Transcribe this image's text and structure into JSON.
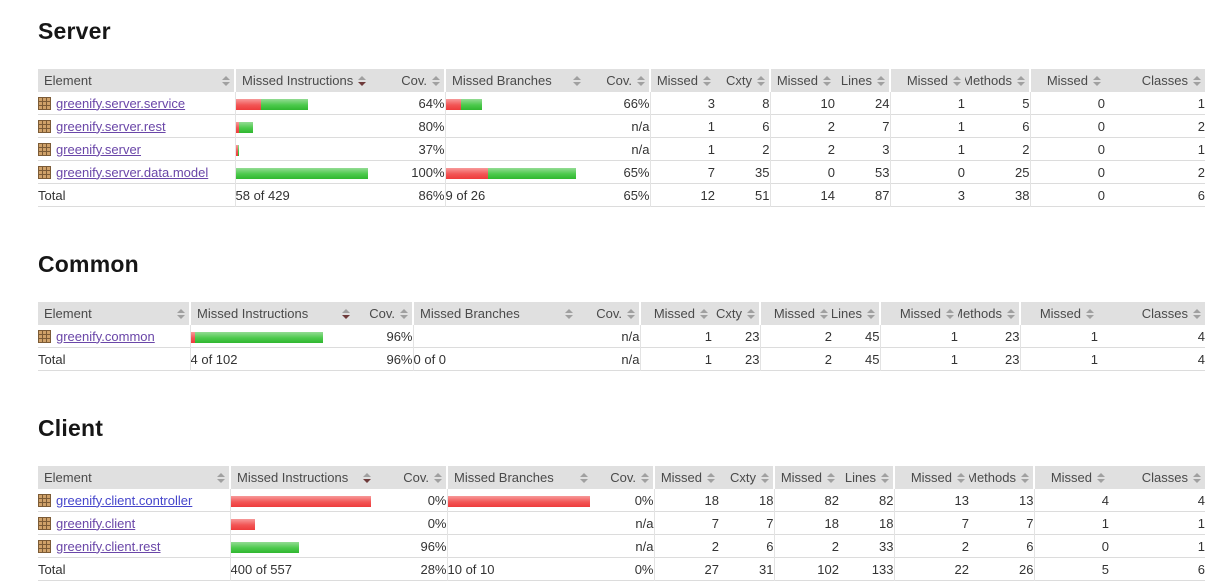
{
  "colors": {
    "header_bg": "#e0e0e0",
    "border": "#dcdcdc",
    "sort_idle": "#a0a0a0",
    "sort_active": "#6e3a3a",
    "bar_red_top": "#f79a9a",
    "bar_red_bottom": "#ee3c3c",
    "bar_green_top": "#93db93",
    "bar_green_bottom": "#2fb72f",
    "link_visited": "#6a46a8",
    "link_unvisited": "#4646cc"
  },
  "sections": [
    {
      "title": "Server",
      "columns": [
        {
          "label": "Element",
          "sort": "idle"
        },
        {
          "label": "Missed Instructions",
          "sort": "desc"
        },
        {
          "label": "Cov.",
          "sort": "idle"
        },
        {
          "label": "Missed Branches",
          "sort": "idle"
        },
        {
          "label": "Cov.",
          "sort": "idle"
        },
        {
          "label": "Missed",
          "sort": "idle"
        },
        {
          "label": "Cxty",
          "sort": "idle"
        },
        {
          "label": "Missed",
          "sort": "idle"
        },
        {
          "label": "Lines",
          "sort": "idle"
        },
        {
          "label": "Missed",
          "sort": "idle"
        },
        {
          "label": "Methods",
          "sort": "idle"
        },
        {
          "label": "Missed",
          "sort": "idle"
        },
        {
          "label": "Classes",
          "sort": "idle"
        }
      ],
      "rows": [
        {
          "label": "greenify.server.service",
          "visited": true,
          "instr_bar": {
            "red": 25,
            "green": 47
          },
          "instr_cov": "64%",
          "branch_bar": {
            "red": 15,
            "green": 21
          },
          "branch_cov": "66%",
          "stats": [
            "3",
            "8",
            "10",
            "24",
            "1",
            "5",
            "0",
            "1"
          ]
        },
        {
          "label": "greenify.server.rest",
          "visited": true,
          "instr_bar": {
            "red": 3,
            "green": 14
          },
          "instr_cov": "80%",
          "branch_bar": null,
          "branch_cov": "n/a",
          "stats": [
            "1",
            "6",
            "2",
            "7",
            "1",
            "6",
            "0",
            "2"
          ]
        },
        {
          "label": "greenify.server",
          "visited": true,
          "instr_bar": {
            "red": 2,
            "green": 1
          },
          "instr_cov": "37%",
          "branch_bar": null,
          "branch_cov": "n/a",
          "stats": [
            "1",
            "2",
            "2",
            "3",
            "1",
            "2",
            "0",
            "1"
          ]
        },
        {
          "label": "greenify.server.data.model",
          "visited": true,
          "instr_bar": {
            "red": 0,
            "green": 132
          },
          "instr_cov": "100%",
          "branch_bar": {
            "red": 42,
            "green": 88
          },
          "branch_cov": "65%",
          "stats": [
            "7",
            "35",
            "0",
            "53",
            "0",
            "25",
            "0",
            "2"
          ]
        }
      ],
      "total": {
        "label": "Total",
        "instr_text": "58 of 429",
        "instr_cov": "86%",
        "branch_text": "9 of 26",
        "branch_cov": "65%",
        "stats": [
          "12",
          "51",
          "14",
          "87",
          "3",
          "38",
          "0",
          "6"
        ]
      }
    },
    {
      "title": "Common",
      "columns": [
        {
          "label": "Element",
          "sort": "idle"
        },
        {
          "label": "Missed Instructions",
          "sort": "desc"
        },
        {
          "label": "Cov.",
          "sort": "idle"
        },
        {
          "label": "Missed Branches",
          "sort": "idle"
        },
        {
          "label": "Cov.",
          "sort": "idle"
        },
        {
          "label": "Missed",
          "sort": "idle"
        },
        {
          "label": "Cxty",
          "sort": "idle"
        },
        {
          "label": "Missed",
          "sort": "idle"
        },
        {
          "label": "Lines",
          "sort": "idle"
        },
        {
          "label": "Missed",
          "sort": "idle"
        },
        {
          "label": "Methods",
          "sort": "idle"
        },
        {
          "label": "Missed",
          "sort": "idle"
        },
        {
          "label": "Classes",
          "sort": "idle"
        }
      ],
      "rows": [
        {
          "label": "greenify.common",
          "visited": true,
          "instr_bar": {
            "red": 4,
            "green": 128
          },
          "instr_cov": "96%",
          "branch_bar": null,
          "branch_cov": "n/a",
          "stats": [
            "1",
            "23",
            "2",
            "45",
            "1",
            "23",
            "1",
            "4"
          ]
        }
      ],
      "total": {
        "label": "Total",
        "instr_text": "4 of 102",
        "instr_cov": "96%",
        "branch_text": "0 of 0",
        "branch_cov": "n/a",
        "stats": [
          "1",
          "23",
          "2",
          "45",
          "1",
          "23",
          "1",
          "4"
        ]
      }
    },
    {
      "title": "Client",
      "columns": [
        {
          "label": "Element",
          "sort": "idle"
        },
        {
          "label": "Missed Instructions",
          "sort": "desc"
        },
        {
          "label": "Cov.",
          "sort": "idle"
        },
        {
          "label": "Missed Branches",
          "sort": "idle"
        },
        {
          "label": "Cov.",
          "sort": "idle"
        },
        {
          "label": "Missed",
          "sort": "idle"
        },
        {
          "label": "Cxty",
          "sort": "idle"
        },
        {
          "label": "Missed",
          "sort": "idle"
        },
        {
          "label": "Lines",
          "sort": "idle"
        },
        {
          "label": "Missed",
          "sort": "idle"
        },
        {
          "label": "Methods",
          "sort": "idle"
        },
        {
          "label": "Missed",
          "sort": "idle"
        },
        {
          "label": "Classes",
          "sort": "idle"
        }
      ],
      "rows": [
        {
          "label": "greenify.client.controller",
          "visited": false,
          "instr_bar": {
            "red": 140,
            "green": 0
          },
          "instr_cov": "0%",
          "branch_bar": {
            "red": 142,
            "green": 0
          },
          "branch_cov": "0%",
          "stats": [
            "18",
            "18",
            "82",
            "82",
            "13",
            "13",
            "4",
            "4"
          ]
        },
        {
          "label": "greenify.client",
          "visited": true,
          "instr_bar": {
            "red": 24,
            "green": 0
          },
          "instr_cov": "0%",
          "branch_bar": null,
          "branch_cov": "n/a",
          "stats": [
            "7",
            "7",
            "18",
            "18",
            "7",
            "7",
            "1",
            "1"
          ]
        },
        {
          "label": "greenify.client.rest",
          "visited": true,
          "instr_bar": {
            "red": 0,
            "green": 68
          },
          "instr_cov": "96%",
          "branch_bar": null,
          "branch_cov": "n/a",
          "stats": [
            "2",
            "6",
            "2",
            "33",
            "2",
            "6",
            "0",
            "1"
          ]
        }
      ],
      "total": {
        "label": "Total",
        "instr_text": "400 of 557",
        "instr_cov": "28%",
        "branch_text": "10 of 10",
        "branch_cov": "0%",
        "stats": [
          "27",
          "31",
          "102",
          "133",
          "22",
          "26",
          "5",
          "6"
        ]
      }
    }
  ]
}
